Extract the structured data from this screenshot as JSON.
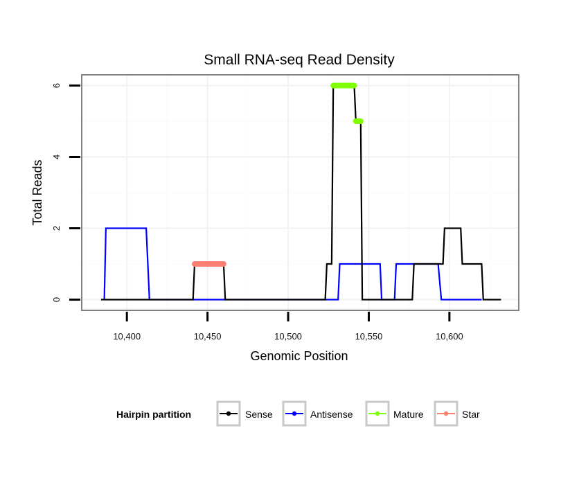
{
  "chart_data": {
    "type": "line",
    "title": "Small RNA-seq Read Density",
    "xlabel": "Genomic Position",
    "ylabel": "Total Reads",
    "xlim": [
      10372,
      10643
    ],
    "ylim": [
      -0.3,
      6.3
    ],
    "x_ticks": [
      10400,
      10450,
      10500,
      10550,
      10600
    ],
    "x_tick_labels": [
      "10,400",
      "10,450",
      "10,500",
      "10,550",
      "10,600"
    ],
    "y_ticks": [
      0,
      2,
      4,
      6
    ],
    "y_tick_labels": [
      "0",
      "2",
      "4",
      "6"
    ],
    "grid": true,
    "legend": {
      "title": "Hairpin partition",
      "position": "bottom",
      "entries": [
        {
          "label": "Sense",
          "color": "#000000"
        },
        {
          "label": "Antisense",
          "color": "#0000ff"
        },
        {
          "label": "Mature",
          "color": "#7fff00"
        },
        {
          "label": "Star",
          "color": "#fa8072"
        }
      ]
    },
    "series": [
      {
        "name": "Sense",
        "color": "#000000",
        "points": [
          [
            10384,
            0
          ],
          [
            10441,
            0
          ],
          [
            10442,
            1
          ],
          [
            10460,
            1
          ],
          [
            10461,
            0
          ],
          [
            10523,
            0
          ],
          [
            10524,
            1
          ],
          [
            10527,
            1
          ],
          [
            10528,
            6
          ],
          [
            10541,
            6
          ],
          [
            10542,
            5
          ],
          [
            10545,
            5
          ],
          [
            10546,
            0
          ],
          [
            10577,
            0
          ],
          [
            10578,
            1
          ],
          [
            10593,
            1
          ],
          [
            10594,
            1
          ],
          [
            10596,
            1
          ],
          [
            10597,
            2
          ],
          [
            10607,
            2
          ],
          [
            10608,
            1
          ],
          [
            10620,
            1
          ],
          [
            10621,
            0
          ],
          [
            10632,
            0
          ]
        ]
      },
      {
        "name": "Antisense",
        "color": "#0000ff",
        "points": [
          [
            10386,
            0
          ],
          [
            10387,
            2
          ],
          [
            10412,
            2
          ],
          [
            10414,
            0
          ],
          [
            10531,
            0
          ],
          [
            10532,
            1
          ],
          [
            10557,
            1
          ],
          [
            10558,
            0
          ],
          [
            10566,
            0
          ],
          [
            10567,
            1
          ],
          [
            10593,
            1
          ],
          [
            10595,
            0
          ],
          [
            10620,
            0
          ]
        ]
      },
      {
        "name": "Mature",
        "color": "#7fff00",
        "segments": [
          [
            10528,
            10541,
            6
          ],
          [
            10542,
            10545,
            5
          ]
        ]
      },
      {
        "name": "Star",
        "color": "#fa8072",
        "segments": [
          [
            10442,
            10460,
            1
          ]
        ]
      }
    ]
  }
}
